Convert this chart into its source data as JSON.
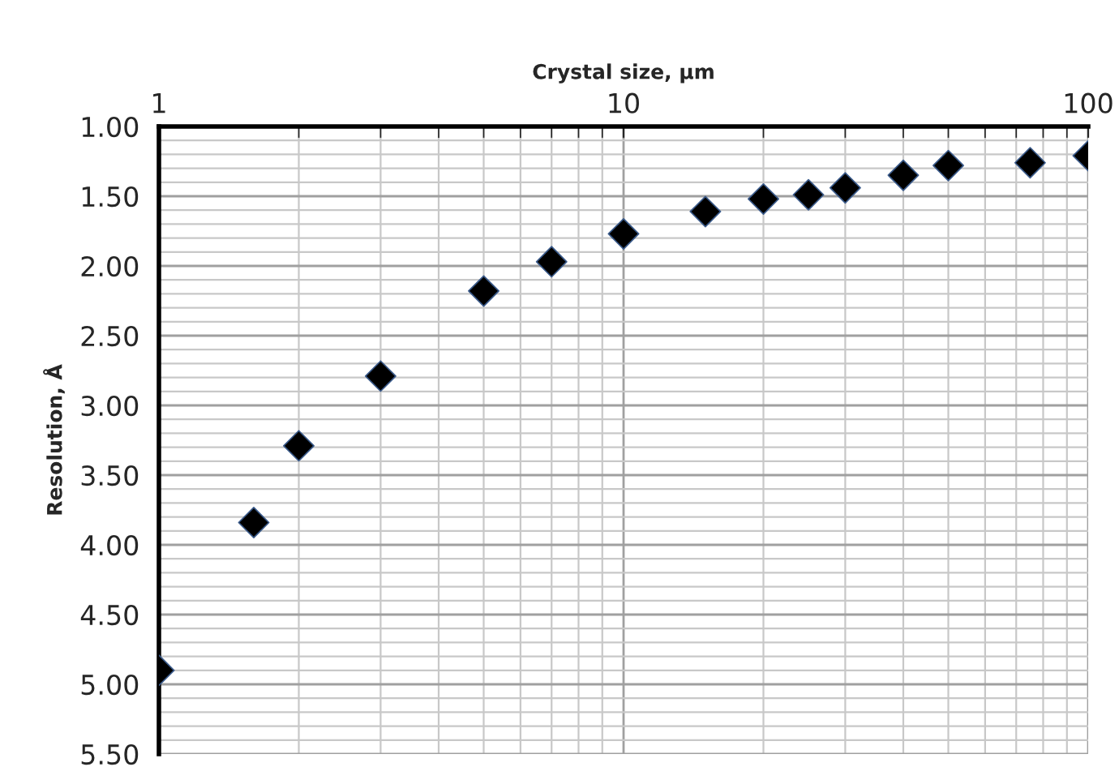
{
  "chart_data": {
    "type": "scatter",
    "xlabel": "Crystal size, µm",
    "ylabel": "Resolution, Å",
    "x": [
      1,
      1.6,
      2,
      3,
      5,
      7,
      10,
      15,
      20,
      25,
      30,
      40,
      50,
      75,
      100
    ],
    "series": [
      {
        "color": "#000000",
        "values": [
          4.9,
          3.84,
          3.29,
          2.79,
          2.18,
          1.97,
          1.77,
          1.61,
          1.52,
          1.49,
          1.44,
          1.35,
          1.28,
          1.26,
          1.21
        ]
      }
    ],
    "log": "x",
    "xlim": [
      1,
      100
    ],
    "xticks": [
      1,
      10,
      100
    ],
    "ylim": [
      5.5,
      1.0
    ],
    "yticks": [
      {
        "value": 1.0,
        "label": "1.00"
      },
      {
        "value": 1.5,
        "label": "1.50"
      },
      {
        "value": 2.0,
        "label": "2.00"
      },
      {
        "value": 2.5,
        "label": "2.50"
      },
      {
        "value": 3.0,
        "label": "3.00"
      },
      {
        "value": 3.5,
        "label": "3.50"
      },
      {
        "value": 4.0,
        "label": "4.00"
      },
      {
        "value": 4.5,
        "label": "4.50"
      },
      {
        "value": 5.0,
        "label": "5.00"
      },
      {
        "value": 5.5,
        "label": "5.50"
      }
    ],
    "grid": true,
    "marker": "diamond"
  }
}
